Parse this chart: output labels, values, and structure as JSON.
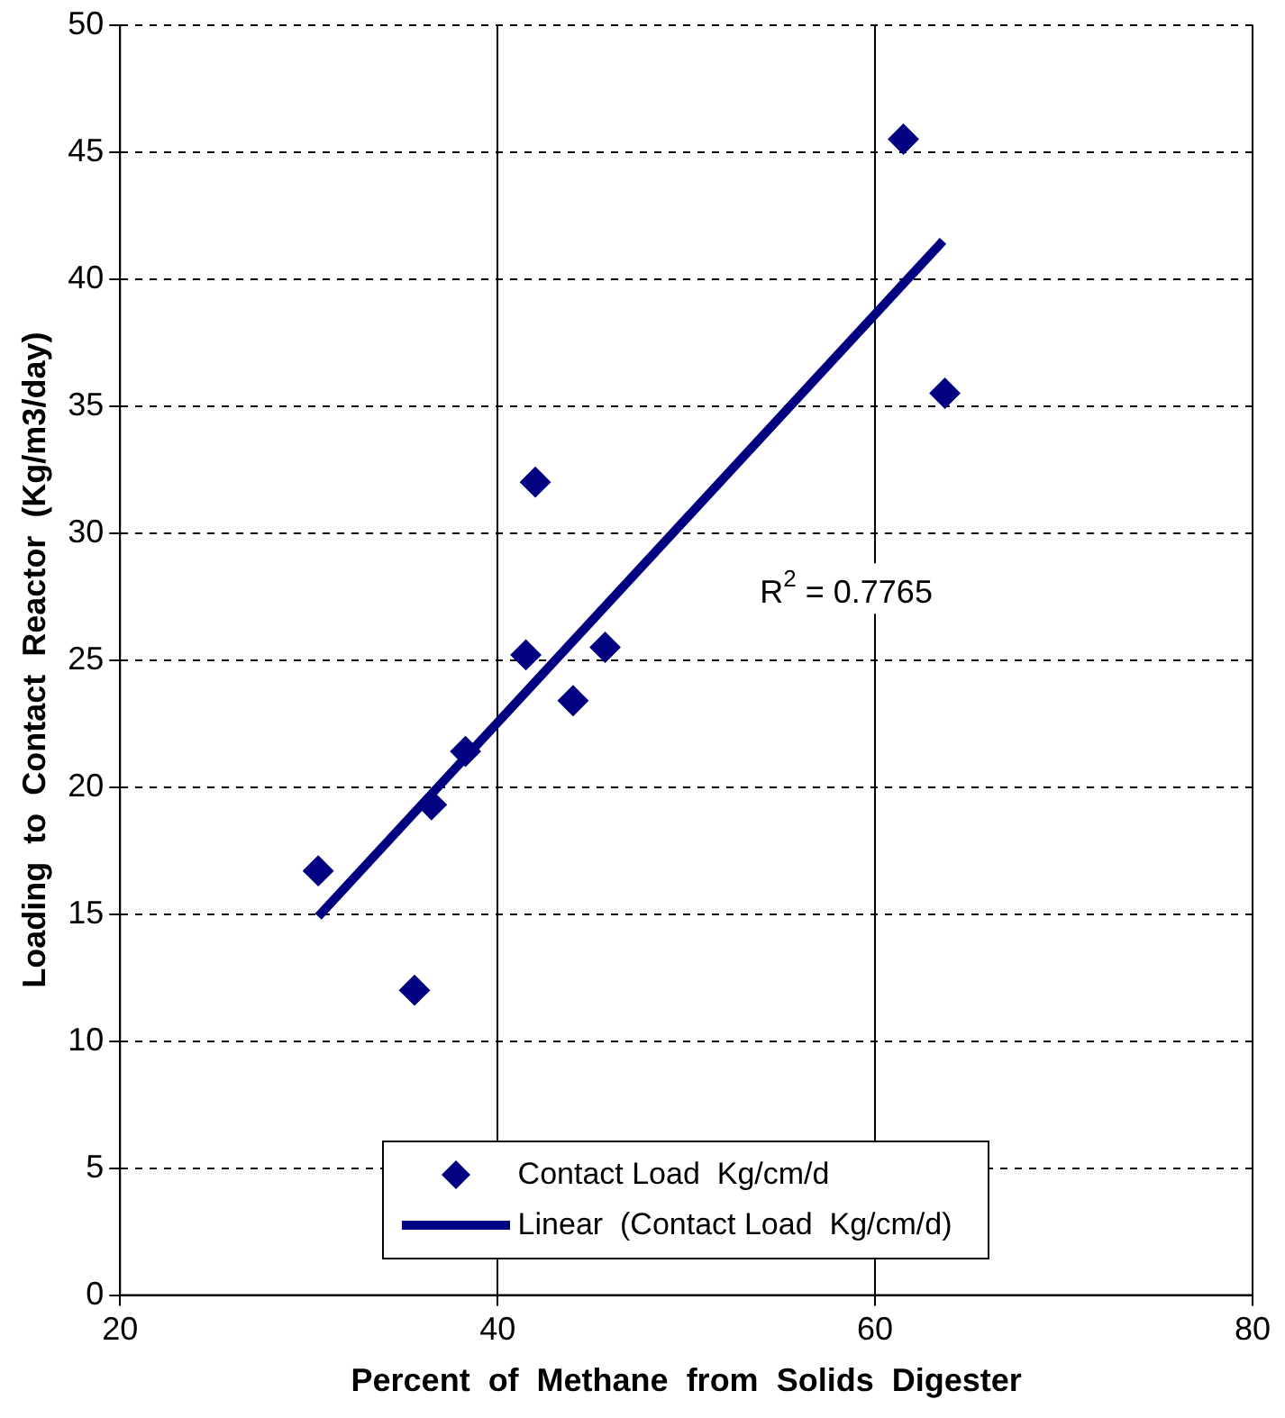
{
  "chart_data": {
    "type": "scatter",
    "xlabel": "Percent  of  Methane  from  Solids  Digester",
    "ylabel": "Loading  to  Contact  Reactor  (Kg/m3/day)",
    "xlim": [
      20,
      80
    ],
    "xticks": [
      20,
      40,
      60,
      80
    ],
    "ylim": [
      0,
      50
    ],
    "yticks": [
      0,
      5,
      10,
      15,
      20,
      25,
      30,
      35,
      40,
      45,
      50
    ],
    "grid": true,
    "legend": "bottom",
    "marker": "diamond",
    "annotations": [
      "R$^{2}$ = 0.7765"
    ],
    "series": [
      {
        "name": "Contact Load  Kg/cm/d",
        "type": "scatter",
        "color": "#000080",
        "x": [
          30.5,
          35.6,
          36.5,
          38.3,
          41.5,
          42.0,
          44.0,
          45.7,
          61.5,
          63.7
        ],
        "values": [
          16.7,
          12.0,
          19.3,
          21.4,
          25.2,
          32.0,
          23.4,
          25.5,
          45.5,
          35.5
        ]
      },
      {
        "name": "Linear  (Contact Load  Kg/cm/d)",
        "type": "line",
        "marker": "none",
        "color": "#000080",
        "x": [
          30.5,
          63.6
        ],
        "values": [
          14.9,
          41.5
        ]
      }
    ]
  }
}
